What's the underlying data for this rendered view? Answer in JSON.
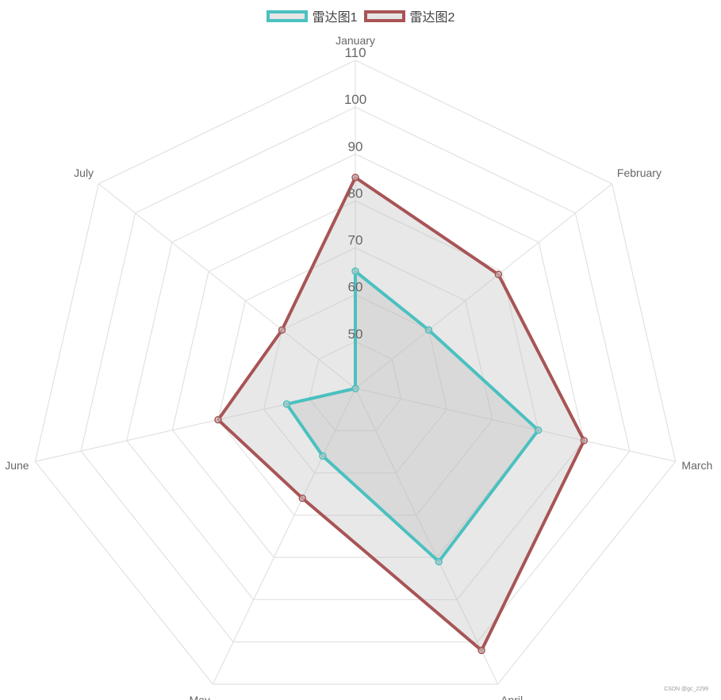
{
  "chart_data": {
    "type": "radar",
    "categories": [
      "January",
      "February",
      "March",
      "April",
      "May",
      "June",
      "July"
    ],
    "series": [
      {
        "name": "雷达图1",
        "values": [
          65,
          60,
          80,
          81,
          56,
          55,
          40
        ],
        "color": "#4BC0C0"
      },
      {
        "name": "雷达图2",
        "values": [
          85,
          79,
          90,
          102,
          66,
          70,
          60
        ],
        "color": "#A85456"
      }
    ],
    "rlim": [
      40,
      110
    ],
    "ticks": [
      50,
      60,
      70,
      80,
      90,
      100,
      110
    ],
    "grid": true,
    "legend": "top",
    "fill_color": "rgba(189,189,189,0.35)"
  },
  "watermark": "CSDN @gc_2299"
}
